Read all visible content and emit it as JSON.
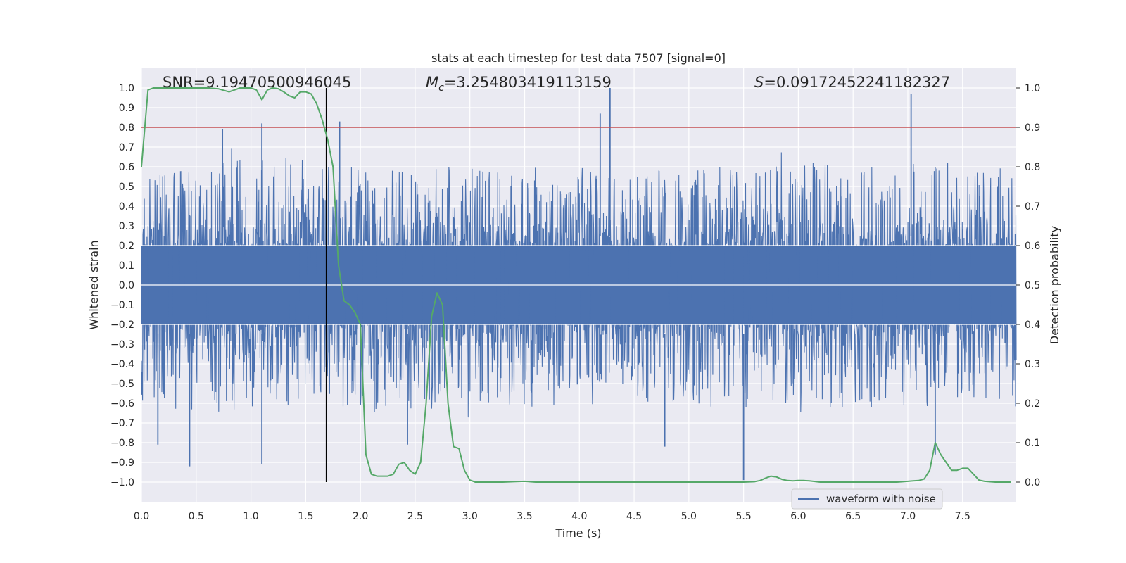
{
  "chart_data": {
    "type": "line",
    "title": "stats at each timestep for test data 7507 [signal=0]",
    "xlabel": "Time (s)",
    "ylabel_left": "Whitened strain",
    "ylabel_right": "Detection probability",
    "xlim": [
      0.0,
      7.99
    ],
    "ylim_left": [
      -1.1,
      1.1
    ],
    "ylim_right": [
      -0.05,
      1.05
    ],
    "x_ticks": [
      "0.0",
      "0.5",
      "1.0",
      "1.5",
      "2.0",
      "2.5",
      "3.0",
      "3.5",
      "4.0",
      "4.5",
      "5.0",
      "5.5",
      "6.0",
      "6.5",
      "7.0",
      "7.5"
    ],
    "y_ticks_left": [
      "1.0",
      "0.9",
      "0.8",
      "0.7",
      "0.6",
      "0.5",
      "0.4",
      "0.3",
      "0.2",
      "0.1",
      "0.0",
      "−0.1",
      "−0.2",
      "−0.3",
      "−0.4",
      "−0.5",
      "−0.6",
      "−0.7",
      "−0.8",
      "−0.9",
      "−1.0"
    ],
    "y_ticks_right": [
      "1.0",
      "0.9",
      "0.8",
      "0.7",
      "0.6",
      "0.5",
      "0.4",
      "0.3",
      "0.2",
      "0.1",
      "0.0"
    ],
    "grid": true,
    "legend": {
      "placement": "lower-right",
      "entries": [
        "waveform with noise"
      ]
    },
    "annotations": {
      "snr": "SNR=9.19470500946045",
      "mc_prefix": "M",
      "mc_sub": "c",
      "mc_value": "=3.254803419113159",
      "s_prefix": "S",
      "s_value": "=0.09172452241182327"
    },
    "threshold_line": {
      "axis": "right",
      "value": 0.9,
      "color": "#c44e52"
    },
    "vertical_marker": {
      "x": 1.69,
      "color": "#000000"
    },
    "series": [
      {
        "name": "waveform with noise",
        "axis": "left",
        "color": "#4c72b0",
        "kind": "noise",
        "duration_s": 7.99,
        "envelope_x": [
          0.0,
          0.5,
          1.0,
          1.5,
          2.0,
          2.5,
          3.0,
          3.5,
          4.0,
          4.5,
          5.0,
          5.5,
          6.0,
          6.5,
          7.0,
          7.5,
          7.99
        ],
        "envelope_pos": [
          0.55,
          0.6,
          0.65,
          0.65,
          0.6,
          0.6,
          0.6,
          0.55,
          0.6,
          0.6,
          0.6,
          0.6,
          0.62,
          0.62,
          0.62,
          0.6,
          0.6
        ],
        "envelope_neg": [
          -0.6,
          -0.65,
          -0.65,
          -0.6,
          -0.65,
          -0.65,
          -0.6,
          -0.62,
          -0.62,
          -0.62,
          -0.62,
          -0.65,
          -0.65,
          -0.62,
          -0.62,
          -0.62,
          -0.62
        ],
        "peaks": [
          {
            "x": 0.15,
            "y": -0.81
          },
          {
            "x": 0.44,
            "y": -0.92
          },
          {
            "x": 0.74,
            "y": 0.79
          },
          {
            "x": 1.1,
            "y": 0.82
          },
          {
            "x": 1.1,
            "y": -0.91
          },
          {
            "x": 1.81,
            "y": 0.83
          },
          {
            "x": 2.43,
            "y": -0.81
          },
          {
            "x": 4.19,
            "y": 0.87
          },
          {
            "x": 4.28,
            "y": 1.0
          },
          {
            "x": 4.78,
            "y": -0.82
          },
          {
            "x": 5.5,
            "y": -0.99
          },
          {
            "x": 7.03,
            "y": 0.97
          },
          {
            "x": 7.25,
            "y": -0.86
          }
        ]
      },
      {
        "name": "",
        "axis": "right",
        "color": "#55a868",
        "x": [
          0.0,
          0.06,
          0.11,
          0.2,
          0.3,
          0.4,
          0.5,
          0.6,
          0.7,
          0.8,
          0.85,
          0.9,
          1.0,
          1.05,
          1.1,
          1.15,
          1.2,
          1.25,
          1.3,
          1.35,
          1.4,
          1.45,
          1.5,
          1.55,
          1.6,
          1.65,
          1.7,
          1.75,
          1.8,
          1.85,
          1.9,
          1.95,
          2.0,
          2.05,
          2.1,
          2.15,
          2.2,
          2.25,
          2.3,
          2.35,
          2.4,
          2.45,
          2.5,
          2.55,
          2.6,
          2.65,
          2.7,
          2.75,
          2.8,
          2.85,
          2.9,
          2.95,
          3.0,
          3.05,
          3.1,
          3.2,
          3.3,
          3.4,
          3.5,
          3.6,
          3.8,
          4.0,
          4.5,
          5.0,
          5.5,
          5.6,
          5.65,
          5.7,
          5.75,
          5.8,
          5.85,
          5.9,
          5.95,
          6.0,
          6.05,
          6.1,
          6.2,
          6.5,
          6.9,
          7.0,
          7.05,
          7.1,
          7.15,
          7.2,
          7.25,
          7.3,
          7.35,
          7.4,
          7.45,
          7.5,
          7.55,
          7.6,
          7.65,
          7.7,
          7.8,
          7.94
        ],
        "y": [
          0.8,
          0.995,
          1.0,
          1.0,
          1.0,
          1.0,
          1.0,
          1.0,
          0.998,
          0.99,
          0.995,
          1.0,
          1.0,
          0.995,
          0.97,
          0.995,
          1.0,
          0.998,
          0.99,
          0.98,
          0.975,
          0.99,
          0.99,
          0.985,
          0.96,
          0.92,
          0.87,
          0.8,
          0.55,
          0.46,
          0.45,
          0.43,
          0.4,
          0.07,
          0.02,
          0.015,
          0.015,
          0.015,
          0.02,
          0.045,
          0.05,
          0.03,
          0.02,
          0.05,
          0.2,
          0.42,
          0.48,
          0.45,
          0.2,
          0.09,
          0.085,
          0.03,
          0.005,
          0.0,
          0.0,
          0.0,
          0.0,
          0.001,
          0.002,
          0.0,
          0.0,
          0.0,
          0.0,
          0.0,
          0.0,
          0.001,
          0.004,
          0.01,
          0.015,
          0.013,
          0.007,
          0.004,
          0.003,
          0.004,
          0.004,
          0.003,
          0.0,
          0.0,
          0.0,
          0.002,
          0.003,
          0.004,
          0.008,
          0.03,
          0.1,
          0.07,
          0.05,
          0.03,
          0.03,
          0.035,
          0.035,
          0.02,
          0.005,
          0.002,
          0.0,
          0.0
        ]
      }
    ]
  }
}
